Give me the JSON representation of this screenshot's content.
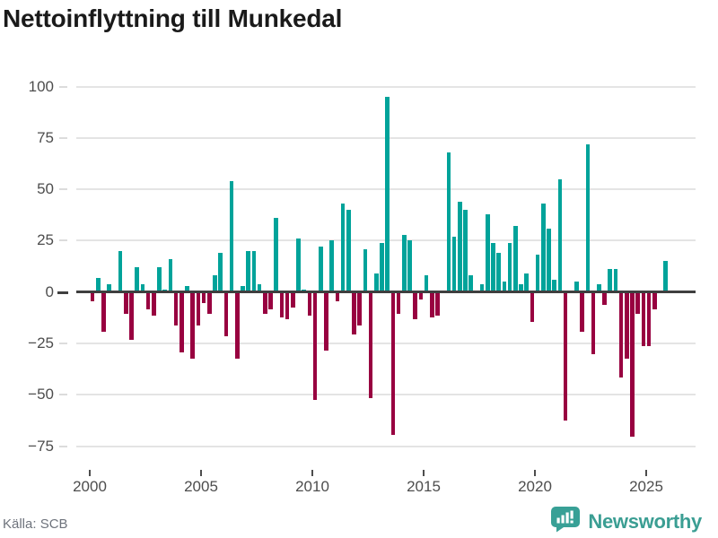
{
  "title": "Nettoinflyttning till Munkedal",
  "footer": {
    "source": "Källa: SCB",
    "brand": "Newsworthy",
    "brand_icon": "speech-bubble-bar-chart-icon"
  },
  "colors": {
    "positive_bar": "#00A39A",
    "negative_bar": "#980140",
    "gridline": "#E4E4E4",
    "zero_axis": "#3F3F3F",
    "tick_label": "#4D4D4D",
    "source_text": "#6E737C",
    "brand_teal": "#3B9E93",
    "title_text": "#1A1A1A",
    "background": "#FFFFFF"
  },
  "chart_data": {
    "type": "bar",
    "title": "Nettoinflyttning till Munkedal",
    "frequency": "quarterly",
    "x_start": {
      "year": 2000,
      "quarter": 1
    },
    "x_end": {
      "year": 2025,
      "quarter": 4
    },
    "values": [
      -4,
      7,
      -19,
      4,
      0,
      20,
      -10,
      -23,
      12,
      4,
      -8,
      -11,
      12,
      1,
      16,
      -16,
      -29,
      3,
      -32,
      -16,
      -5,
      -10,
      8,
      19,
      -21,
      54,
      -32,
      3,
      20,
      20,
      4,
      -10,
      -8,
      36,
      -12,
      -13,
      -7,
      26,
      1,
      -11,
      -52,
      22,
      -28,
      25,
      -4,
      43,
      40,
      -20,
      -16,
      21,
      -51,
      9,
      24,
      95,
      -69,
      -10,
      28,
      25,
      -13,
      -3,
      8,
      -12,
      -11,
      0,
      68,
      27,
      44,
      40,
      8,
      0,
      4,
      38,
      24,
      19,
      5,
      24,
      32,
      4,
      9,
      -14,
      18,
      43,
      31,
      6,
      55,
      -62,
      0,
      5,
      -19,
      72,
      -30,
      4,
      -6,
      11,
      11,
      -41,
      -32,
      -70,
      -10,
      -26,
      -26,
      -8,
      0,
      15
    ],
    "x_tick_years": [
      2000,
      2005,
      2010,
      2015,
      2020,
      2025
    ],
    "x_tick_labels": [
      "2000",
      "2005",
      "2010",
      "2015",
      "2020",
      "2025"
    ],
    "y_tick_values": [
      100,
      75,
      50,
      25,
      0,
      -25,
      -50,
      -75
    ],
    "y_tick_labels": [
      "100",
      "75",
      "50",
      "25",
      "0",
      "−25",
      "−50",
      "−75"
    ],
    "ylim": [
      -75,
      100
    ],
    "grid": "horizontal",
    "legend": "none"
  }
}
